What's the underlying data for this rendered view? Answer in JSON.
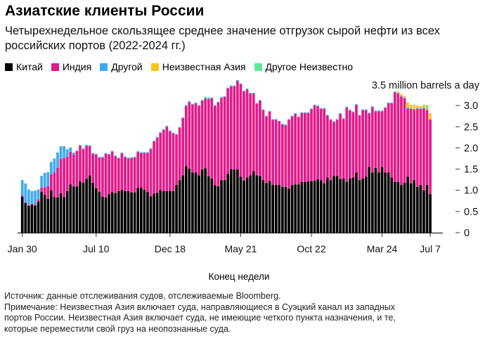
{
  "title": "Азиатские клиенты России",
  "subtitle": "Четырехнедельное скользящее среднее значение отгрузок сырой нефти из всех российских портов (2022-2024 гг.)",
  "footer": {
    "source": "Источник: данные отслеживания судов, отслеживаемые Bloomberg.",
    "note_line1": "Примечание: Неизвестная Азия включает суда, направляющиеся в Суэцкий канал из западных",
    "note_line2": "портов России. Неизвестная Азия включает суда, не имеющие четкого пункта назначения, и те,",
    "note_line3": "которые переместили свой груз на неопознанные суда."
  },
  "chart_data": {
    "type": "bar",
    "stacked": true,
    "title": "Азиатские клиенты России",
    "xlabel": "Конец недели",
    "ylabel": "",
    "y_unit_label": "3.5 million barrels a day",
    "ylim": [
      0,
      3.5
    ],
    "yticks": [
      "0",
      "0.5",
      "1.0",
      "1.5",
      "2.0",
      "2.5",
      "3.0"
    ],
    "ytick_values": [
      0,
      0.5,
      1.0,
      1.5,
      2.0,
      2.5,
      3.0
    ],
    "xticks": [
      {
        "label": "Jan 30",
        "index": 0
      },
      {
        "label": "Jul 10",
        "index": 23
      },
      {
        "label": "Dec 18",
        "index": 46
      },
      {
        "label": "May 21",
        "index": 68
      },
      {
        "label": "Oct 22",
        "index": 90
      },
      {
        "label": "Mar 24",
        "index": 112
      },
      {
        "label": "Jul 7",
        "index": 127
      }
    ],
    "legend_position": "top-left",
    "series": [
      {
        "name": "Китай",
        "color": "#000000",
        "values": [
          0.85,
          0.7,
          0.63,
          0.66,
          0.64,
          0.73,
          0.96,
          0.89,
          0.8,
          1.0,
          0.84,
          0.83,
          0.93,
          0.84,
          0.98,
          1.14,
          1.09,
          1.09,
          1.21,
          1.18,
          1.27,
          1.35,
          1.18,
          1.05,
          0.96,
          0.85,
          0.83,
          0.91,
          0.96,
          0.93,
          0.98,
          1.01,
          0.98,
          0.98,
          0.95,
          0.95,
          1.06,
          1.06,
          1.01,
          0.96,
          0.86,
          0.92,
          0.94,
          1.01,
          0.98,
          0.98,
          0.99,
          0.98,
          1.12,
          1.24,
          1.35,
          1.57,
          1.51,
          1.42,
          1.42,
          1.35,
          1.49,
          1.52,
          1.33,
          1.28,
          1.12,
          1.09,
          1.24,
          1.24,
          1.39,
          1.5,
          1.49,
          1.49,
          1.32,
          1.23,
          1.3,
          1.35,
          1.45,
          1.35,
          1.34,
          1.24,
          1.17,
          1.22,
          1.13,
          1.12,
          1.13,
          1.08,
          1.08,
          1.04,
          1.12,
          1.14,
          1.14,
          1.2,
          1.2,
          1.21,
          1.21,
          1.23,
          1.26,
          1.24,
          1.16,
          1.3,
          1.24,
          1.34,
          1.34,
          1.26,
          1.28,
          1.2,
          1.28,
          1.3,
          1.42,
          1.24,
          1.28,
          1.32,
          1.55,
          1.42,
          1.53,
          1.42,
          1.55,
          1.42,
          1.42,
          1.3,
          1.2,
          1.2,
          1.12,
          1.18,
          1.32,
          1.16,
          1.24,
          1.08,
          1.13,
          1.0,
          1.13,
          0.91
        ]
      },
      {
        "name": "Индия",
        "color": "#e5198a",
        "values": [
          0.03,
          0.02,
          0.02,
          0.02,
          0.02,
          0.05,
          0.1,
          0.18,
          0.3,
          0.38,
          0.58,
          0.7,
          0.81,
          0.92,
          0.81,
          0.77,
          0.75,
          0.83,
          0.84,
          0.79,
          0.78,
          0.69,
          0.68,
          0.79,
          0.81,
          0.92,
          1.03,
          0.93,
          0.95,
          0.87,
          0.77,
          0.86,
          0.8,
          0.77,
          0.81,
          0.82,
          0.84,
          0.82,
          0.87,
          0.92,
          1.11,
          1.23,
          1.3,
          1.34,
          1.44,
          1.52,
          1.4,
          1.36,
          1.19,
          1.23,
          1.35,
          1.42,
          1.57,
          1.6,
          1.63,
          1.64,
          1.62,
          1.64,
          1.82,
          1.89,
          1.87,
          1.98,
          1.94,
          1.96,
          2.01,
          1.95,
          1.96,
          2.09,
          2.18,
          2.1,
          2.08,
          1.93,
          1.83,
          1.69,
          1.77,
          1.65,
          1.57,
          1.63,
          1.53,
          1.54,
          1.49,
          1.47,
          1.45,
          1.62,
          1.62,
          1.66,
          1.58,
          1.62,
          1.62,
          1.61,
          1.7,
          1.77,
          1.72,
          1.68,
          1.76,
          1.46,
          1.42,
          1.27,
          1.32,
          1.54,
          1.4,
          1.75,
          1.6,
          1.54,
          1.59,
          1.52,
          1.61,
          1.57,
          1.26,
          1.54,
          1.33,
          1.44,
          1.31,
          1.52,
          1.63,
          1.75,
          2.11,
          2.08,
          2.09,
          1.99,
          1.61,
          1.76,
          1.66,
          1.84,
          1.79,
          1.93,
          1.76,
          1.76
        ]
      },
      {
        "name": "Другой",
        "color": "#3eaaf0",
        "values": [
          0.36,
          0.44,
          0.37,
          0.3,
          0.33,
          0.24,
          0.28,
          0.34,
          0.33,
          0.29,
          0.33,
          0.36,
          0.3,
          0.28,
          0.18,
          0.1,
          0.05,
          0.02,
          0.02,
          0.02,
          0.02,
          0.02,
          0.02,
          0.02,
          0.02,
          0.02,
          0.02,
          0.02,
          0.02,
          0.02,
          0.02,
          0.02,
          0.02,
          0.02,
          0.02,
          0.02,
          0.02,
          0.02,
          0.02,
          0.02,
          0.02,
          0.02,
          0.02,
          0.02,
          0.02,
          0.02,
          0.02,
          0.02,
          0.02,
          0.02,
          0.02,
          0.02,
          0.02,
          0.02,
          0.02,
          0.02,
          0.02,
          0.02,
          0.02,
          0.02,
          0.02,
          0.02,
          0.02,
          0.02,
          0.02,
          0.02,
          0.02,
          0.02,
          0.02,
          0.02,
          0.02,
          0.02,
          0.02,
          0.02,
          0.02,
          0.02,
          0.02,
          0.02,
          0.02,
          0.02,
          0.02,
          0.02,
          0.02,
          0.02,
          0.02,
          0.02,
          0.02,
          0.02,
          0.02,
          0.02,
          0.02,
          0.02,
          0.02,
          0.02,
          0.02,
          0.02,
          0.02,
          0.02,
          0.02,
          0.02,
          0.02,
          0.02,
          0.02,
          0.02,
          0.02,
          0.02,
          0.02,
          0.02,
          0.02,
          0.02,
          0.02,
          0.02,
          0.02,
          0.02,
          0.02,
          0.02,
          0.02,
          0.02,
          0.02,
          0.02,
          0.02,
          0.02,
          0.02,
          0.02,
          0.02,
          0.02,
          0.02,
          0.0
        ]
      },
      {
        "name": "Неизвестная Азия",
        "color": "#f5c518",
        "values": [
          0,
          0,
          0,
          0,
          0,
          0,
          0,
          0,
          0,
          0,
          0,
          0,
          0,
          0,
          0,
          0,
          0,
          0,
          0,
          0,
          0,
          0,
          0,
          0,
          0,
          0,
          0,
          0,
          0,
          0,
          0,
          0,
          0,
          0,
          0,
          0,
          0,
          0,
          0,
          0,
          0,
          0,
          0,
          0,
          0,
          0,
          0,
          0,
          0,
          0,
          0,
          0,
          0,
          0,
          0,
          0,
          0,
          0,
          0,
          0,
          0,
          0,
          0,
          0,
          0,
          0,
          0,
          0,
          0,
          0,
          0,
          0,
          0,
          0,
          0,
          0,
          0,
          0,
          0,
          0,
          0,
          0,
          0,
          0,
          0,
          0,
          0,
          0,
          0,
          0,
          0,
          0,
          0,
          0,
          0,
          0,
          0,
          0,
          0,
          0,
          0,
          0,
          0,
          0,
          0,
          0,
          0,
          0,
          0,
          0,
          0,
          0,
          0,
          0,
          0,
          0,
          0,
          0.03,
          0.04,
          0.03,
          0.12,
          0.08,
          0.1,
          0.06,
          0.05,
          0.04,
          0.05,
          0.15
        ]
      },
      {
        "name": "Другое Неизвестно",
        "color": "#5ee89a",
        "values": [
          0,
          0,
          0,
          0,
          0,
          0,
          0,
          0,
          0,
          0,
          0,
          0,
          0,
          0,
          0,
          0,
          0,
          0,
          0,
          0,
          0,
          0,
          0,
          0,
          0,
          0,
          0,
          0,
          0,
          0,
          0,
          0,
          0,
          0,
          0,
          0,
          0,
          0,
          0,
          0,
          0,
          0,
          0,
          0,
          0,
          0,
          0,
          0,
          0,
          0,
          0,
          0,
          0,
          0,
          0,
          0,
          0,
          0.03,
          0.02,
          0,
          0,
          0,
          0,
          0,
          0,
          0,
          0,
          0,
          0,
          0,
          0,
          0,
          0,
          0,
          0,
          0,
          0,
          0,
          0,
          0,
          0,
          0,
          0,
          0,
          0,
          0,
          0,
          0,
          0,
          0,
          0,
          0,
          0,
          0,
          0,
          0,
          0,
          0,
          0,
          0,
          0,
          0,
          0,
          0,
          0,
          0,
          0,
          0,
          0,
          0,
          0,
          0,
          0,
          0,
          0,
          0,
          0,
          0,
          0,
          0,
          0,
          0,
          0,
          0,
          0,
          0.03,
          0.05
        ]
      }
    ]
  }
}
